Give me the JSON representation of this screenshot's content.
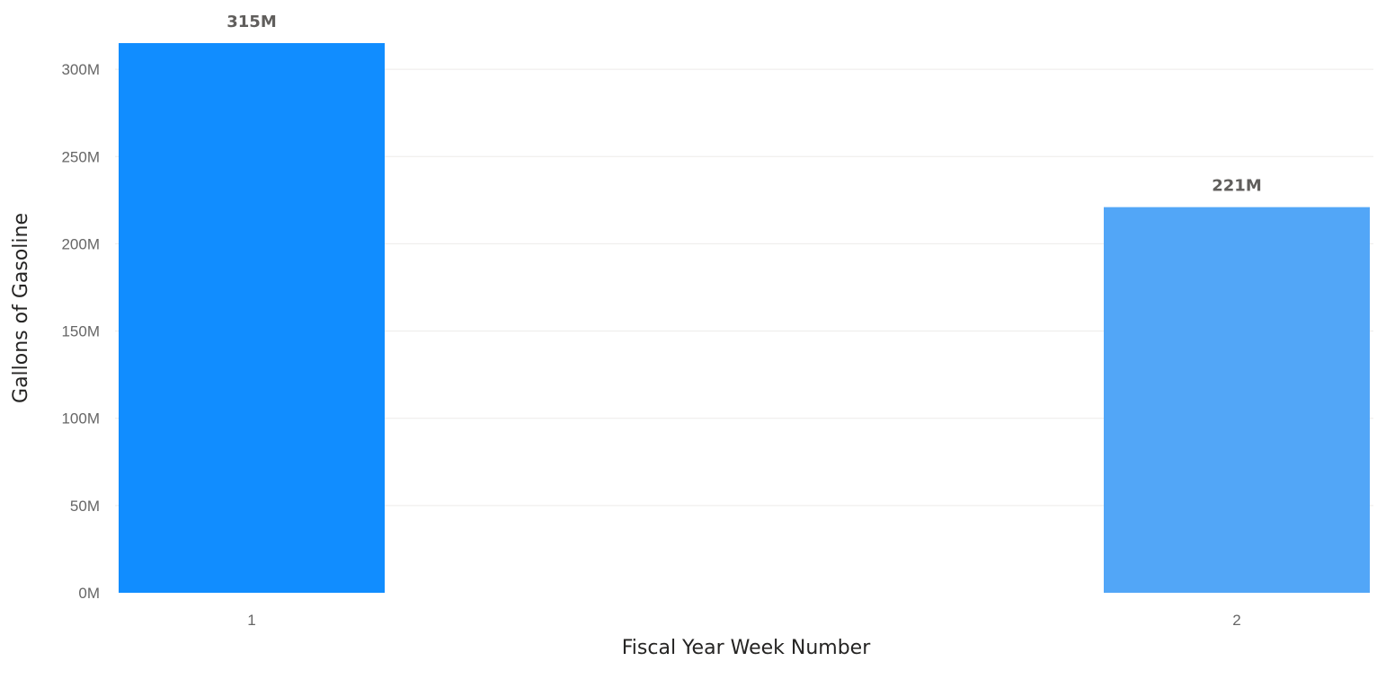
{
  "chart_data": {
    "type": "bar",
    "categories": [
      "1",
      "2"
    ],
    "values": [
      315000000,
      221000000
    ],
    "data_labels": [
      "315M",
      "221M"
    ],
    "xlabel": "Fiscal Year Week Number",
    "ylabel": "Gallons of Gasoline",
    "ylim": [
      0,
      315000000
    ],
    "yticks": [
      0,
      50000000,
      100000000,
      150000000,
      200000000,
      250000000,
      300000000
    ],
    "ytick_labels": [
      "0M",
      "50M",
      "100M",
      "150M",
      "200M",
      "250M",
      "300M"
    ],
    "grid": true,
    "legend": "none",
    "colors": {
      "bar_1": "#118DFF",
      "bar_2": "#52A6F7",
      "gridline": "#EDEBE9",
      "tick_text": "#666666",
      "label_text": "#605E5C"
    }
  }
}
